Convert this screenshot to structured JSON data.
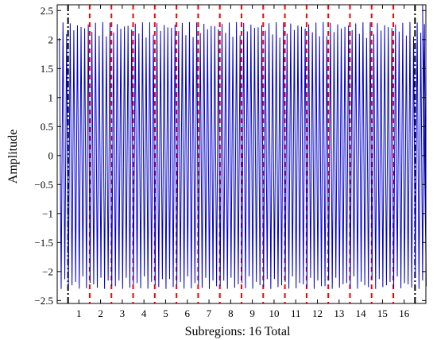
{
  "chart_data": {
    "type": "line",
    "title": "",
    "xlabel": "Subregions: 16 Total",
    "ylabel": "Amplitude",
    "xlim": [
      0,
      17
    ],
    "ylim": [
      -2.55,
      2.6
    ],
    "x_ticks": [
      1,
      2,
      3,
      4,
      5,
      6,
      7,
      8,
      9,
      10,
      11,
      12,
      13,
      14,
      15,
      16
    ],
    "x_tick_labels": [
      "1",
      "2",
      "3",
      "4",
      "5",
      "6",
      "7",
      "8",
      "9",
      "10",
      "11",
      "12",
      "13",
      "14",
      "15",
      "16"
    ],
    "y_ticks": [
      -2.5,
      -2,
      -1.5,
      -1,
      -0.5,
      0,
      0.5,
      1,
      1.5,
      2,
      2.5
    ],
    "y_tick_labels": [
      "−2.5",
      "−2",
      "−1.5",
      "−1",
      "−0.5",
      "0",
      "0.5",
      "1",
      "1.5",
      "2",
      "2.5"
    ],
    "grid": false,
    "legend": "none",
    "series": [
      {
        "kind": "signal",
        "color": "#0000cc",
        "cycles_per_subregion": 6,
        "peak_amplitude": 2.3,
        "range_x": [
          0.1,
          16.9
        ],
        "max_value": 2.6,
        "min_value": -2.45
      }
    ],
    "subregion_boundaries": {
      "color": "#ff0000",
      "style": "dashed",
      "x": [
        1.5,
        2.5,
        3.5,
        4.5,
        5.5,
        6.5,
        7.5,
        8.5,
        9.5,
        10.5,
        11.5,
        12.5,
        13.5,
        14.5,
        15.5
      ]
    },
    "outer_boundaries": {
      "color": "#000000",
      "style": "dash-dot",
      "x": [
        0.5,
        16.5
      ]
    }
  }
}
